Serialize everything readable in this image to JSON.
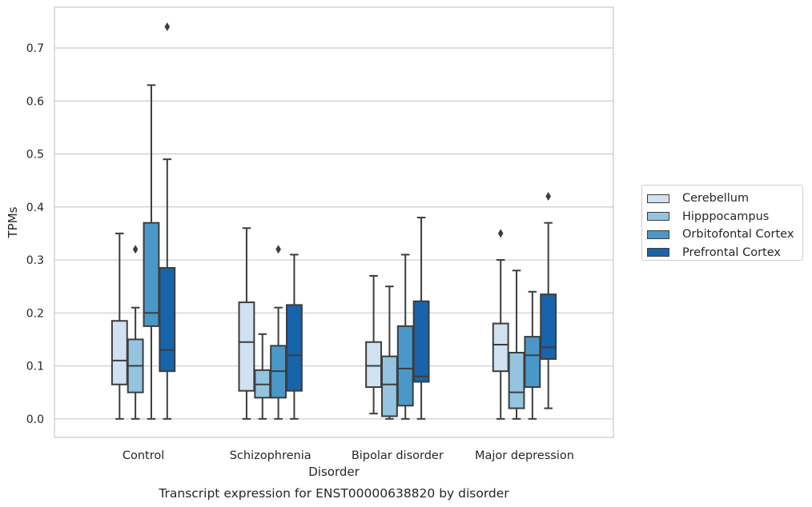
{
  "chart_data": {
    "type": "box",
    "title": "Transcript expression for ENST00000638820 by disorder",
    "xlabel": "Disorder",
    "ylabel": "TPMs",
    "ylim": [
      -0.035,
      0.777
    ],
    "yticks": [
      "0.0",
      "0.1",
      "0.2",
      "0.3",
      "0.4",
      "0.5",
      "0.6",
      "0.7"
    ],
    "ytick_values": [
      0.0,
      0.1,
      0.2,
      0.3,
      0.4,
      0.5,
      0.6,
      0.7
    ],
    "grid": true,
    "legend_position": "right",
    "categories": [
      "Control",
      "Schizophrenia",
      "Bipolar disorder",
      "Major depression"
    ],
    "series": [
      {
        "name": "Cerebellum",
        "color": "#d0e1f2",
        "boxes": [
          {
            "whislo": 0.0,
            "q1": 0.065,
            "med": 0.11,
            "q3": 0.185,
            "whishi": 0.35,
            "fliers": []
          },
          {
            "whislo": 0.0,
            "q1": 0.053,
            "med": 0.145,
            "q3": 0.22,
            "whishi": 0.36,
            "fliers": []
          },
          {
            "whislo": 0.01,
            "q1": 0.06,
            "med": 0.1,
            "q3": 0.145,
            "whishi": 0.27,
            "fliers": []
          },
          {
            "whislo": 0.0,
            "q1": 0.09,
            "med": 0.14,
            "q3": 0.18,
            "whishi": 0.3,
            "fliers": [
              0.35
            ]
          }
        ]
      },
      {
        "name": "Hipppocampus",
        "color": "#94c4df",
        "boxes": [
          {
            "whislo": 0.0,
            "q1": 0.05,
            "med": 0.1,
            "q3": 0.15,
            "whishi": 0.21,
            "fliers": [
              0.32
            ]
          },
          {
            "whislo": 0.0,
            "q1": 0.04,
            "med": 0.065,
            "q3": 0.092,
            "whishi": 0.16,
            "fliers": []
          },
          {
            "whislo": 0.0,
            "q1": 0.005,
            "med": 0.065,
            "q3": 0.118,
            "whishi": 0.25,
            "fliers": []
          },
          {
            "whislo": 0.0,
            "q1": 0.02,
            "med": 0.05,
            "q3": 0.125,
            "whishi": 0.28,
            "fliers": []
          }
        ]
      },
      {
        "name": "Orbitofontal Cortex",
        "color": "#4a98c9",
        "boxes": [
          {
            "whislo": 0.0,
            "q1": 0.175,
            "med": 0.2,
            "q3": 0.37,
            "whishi": 0.63,
            "fliers": []
          },
          {
            "whislo": 0.0,
            "q1": 0.04,
            "med": 0.09,
            "q3": 0.138,
            "whishi": 0.21,
            "fliers": [
              0.32
            ]
          },
          {
            "whislo": 0.0,
            "q1": 0.025,
            "med": 0.095,
            "q3": 0.175,
            "whishi": 0.31,
            "fliers": []
          },
          {
            "whislo": 0.0,
            "q1": 0.06,
            "med": 0.12,
            "q3": 0.155,
            "whishi": 0.24,
            "fliers": []
          }
        ]
      },
      {
        "name": "Prefrontal Cortex",
        "color": "#1764ab",
        "boxes": [
          {
            "whislo": 0.0,
            "q1": 0.09,
            "med": 0.13,
            "q3": 0.285,
            "whishi": 0.49,
            "fliers": [
              0.74
            ]
          },
          {
            "whislo": 0.0,
            "q1": 0.053,
            "med": 0.12,
            "q3": 0.215,
            "whishi": 0.31,
            "fliers": []
          },
          {
            "whislo": 0.0,
            "q1": 0.07,
            "med": 0.08,
            "q3": 0.222,
            "whishi": 0.38,
            "fliers": []
          },
          {
            "whislo": 0.02,
            "q1": 0.113,
            "med": 0.135,
            "q3": 0.235,
            "whishi": 0.37,
            "fliers": [
              0.42
            ]
          }
        ]
      }
    ]
  }
}
